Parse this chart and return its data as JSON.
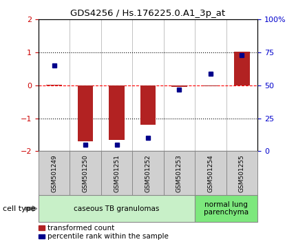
{
  "title": "GDS4256 / Hs.176225.0.A1_3p_at",
  "samples": [
    "GSM501249",
    "GSM501250",
    "GSM501251",
    "GSM501252",
    "GSM501253",
    "GSM501254",
    "GSM501255"
  ],
  "red_bars": [
    0.02,
    -1.7,
    -1.65,
    -1.2,
    -0.05,
    -0.03,
    1.02
  ],
  "blue_squares_pct": [
    65,
    5,
    5,
    10,
    47,
    59,
    73
  ],
  "ylim": [
    -2,
    2
  ],
  "y2lim": [
    0,
    100
  ],
  "yticks_left": [
    -2,
    -1,
    0,
    1,
    2
  ],
  "yticks_right": [
    0,
    25,
    50,
    75,
    100
  ],
  "ytick_labels_right": [
    "0",
    "25",
    "50",
    "75",
    "100%"
  ],
  "bar_color": "#b22222",
  "square_color": "#00008b",
  "cell_type_groups": [
    {
      "label": "caseous TB granulomas",
      "start": 0,
      "end": 4,
      "color": "#c8f0c8"
    },
    {
      "label": "normal lung\nparenchyma",
      "start": 5,
      "end": 6,
      "color": "#7de87d"
    }
  ],
  "legend_items": [
    {
      "color": "#b22222",
      "label": "transformed count"
    },
    {
      "color": "#00008b",
      "label": "percentile rank within the sample"
    }
  ],
  "cell_type_label": "cell type",
  "background_color": "#ffffff",
  "tick_label_color_left": "#cc0000",
  "tick_label_color_right": "#0000cc",
  "sample_label_bg": "#d0d0d0",
  "sample_label_border": "#888888"
}
